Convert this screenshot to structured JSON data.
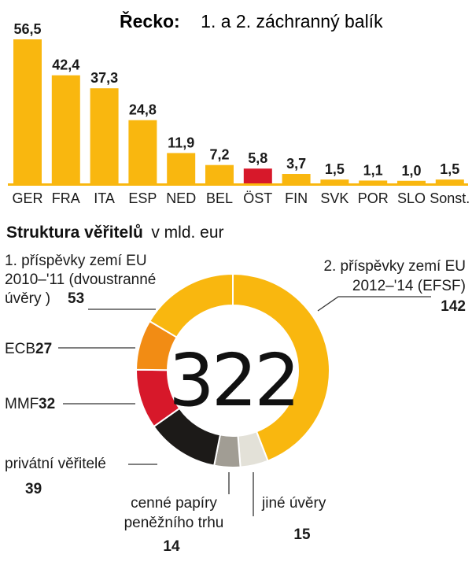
{
  "chart_data": [
    {
      "type": "bar",
      "title_bold": "Řecko:",
      "title": "1. a 2. záchranný balík",
      "categories": [
        "GER",
        "FRA",
        "ITA",
        "ESP",
        "NED",
        "BEL",
        "ÖST",
        "FIN",
        "SVK",
        "POR",
        "SLO",
        "Sonst."
      ],
      "values": [
        56.5,
        42.4,
        37.3,
        24.8,
        11.9,
        7.2,
        5.8,
        3.7,
        1.5,
        1.1,
        1.0,
        1.5
      ],
      "value_labels": [
        "56,5",
        "42,4",
        "37,3",
        "24,8",
        "11,9",
        "7,2",
        "5,8",
        "3,7",
        "1,5",
        "1,1",
        "1,0",
        "1,5"
      ],
      "highlight_index": 6,
      "colors": {
        "bar": "#F9B70F",
        "highlight": "#D7182A",
        "baseline": "#F9B70F"
      },
      "ylim": [
        0,
        56.5
      ]
    },
    {
      "type": "pie",
      "subtitle_bold": "Struktura věřitelů",
      "subtitle": "v mld. eur",
      "total": "322",
      "slices": [
        {
          "lines": [
            "2. příspěvky zemí EU",
            "2012–'14 (EFSF)"
          ],
          "value": 142,
          "color": "#F9B70F"
        },
        {
          "lines": [
            "jiné úvěry"
          ],
          "value": 15,
          "color": "#E3E1D8"
        },
        {
          "lines": [
            "cenné papíry",
            "peněžního trhu"
          ],
          "value": 14,
          "color": "#A19D94"
        },
        {
          "lines": [
            "privátní věřitelé"
          ],
          "value": 39,
          "color": "#1C1A18"
        },
        {
          "lines": [
            "MMF"
          ],
          "value": 32,
          "color": "#D7182A"
        },
        {
          "lines": [
            "ECB"
          ],
          "value": 27,
          "color": "#F28C14"
        },
        {
          "lines": [
            "1. příspěvky zemí EU",
            "2010–'11 (dvoustranné",
            "úvěry )"
          ],
          "value": 53,
          "color": "#F9B70F"
        }
      ]
    }
  ]
}
